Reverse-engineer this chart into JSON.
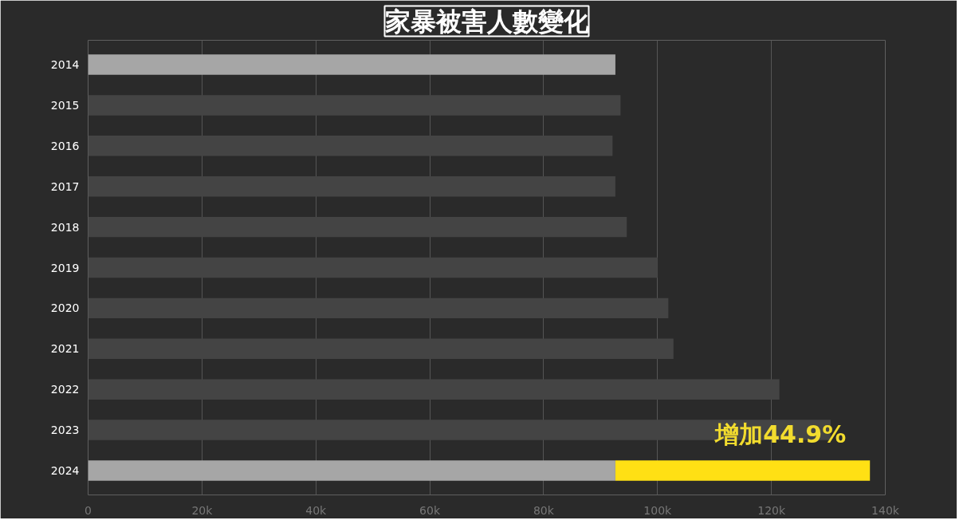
{
  "chart_data": {
    "type": "bar",
    "orientation": "horizontal",
    "stacked": true,
    "title": "家暴被害人數變化",
    "categories": [
      "2014",
      "2015",
      "2016",
      "2017",
      "2018",
      "2019",
      "2020",
      "2021",
      "2022",
      "2023",
      "2024"
    ],
    "series": [
      {
        "colors": [
          "#a6a6a6",
          "#444444",
          "#444444",
          "#444444",
          "#444444",
          "#444444",
          "#444444",
          "#444444",
          "#444444",
          "#444444",
          "#a6a6a6"
        ],
        "values": [
          92600,
          93500,
          92100,
          92600,
          94600,
          100000,
          101900,
          102800,
          121400,
          130400,
          92600
        ]
      },
      {
        "color": "#ffe014",
        "values": [
          null,
          null,
          null,
          null,
          null,
          null,
          null,
          null,
          null,
          null,
          44700
        ]
      }
    ],
    "xlim": [
      0,
      140000
    ],
    "xticks": [
      0,
      {
        "value": 20000,
        "label": "20k"
      },
      {
        "value": 40000,
        "label": "40k"
      },
      {
        "value": 60000,
        "label": "60k"
      },
      {
        "value": 80000,
        "label": "80k"
      },
      {
        "value": 100000,
        "label": "100k"
      },
      {
        "value": 120000,
        "label": "120k"
      },
      {
        "value": 140000,
        "label": "140k"
      }
    ],
    "grid": "x",
    "annotations": [
      "增加44.9%"
    ]
  }
}
